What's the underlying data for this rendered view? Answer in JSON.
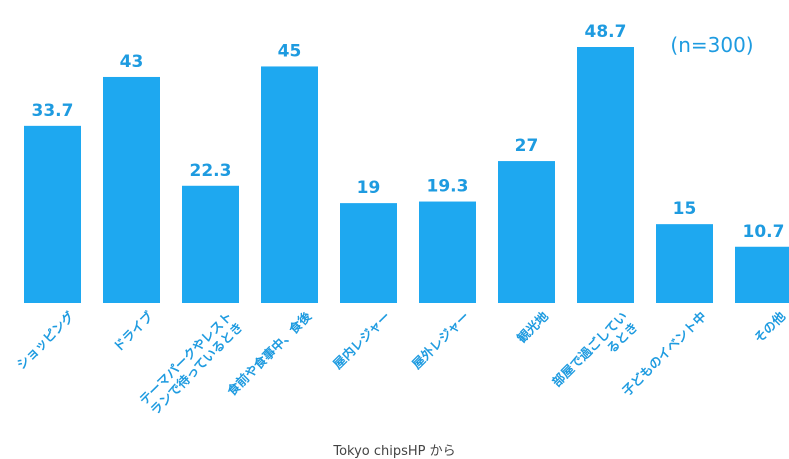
{
  "chart_data": {
    "type": "bar",
    "categories": [
      "ショッピング",
      "ドライブ",
      "テーマパークやレストランで待っているとき",
      "食前や食事中、食後",
      "屋内レジャー",
      "屋外レジャー",
      "観光地",
      "部屋で過ごしているとき",
      "子どものイベント中",
      "その他"
    ],
    "values": [
      33.7,
      43,
      22.3,
      45,
      19,
      19.3,
      27,
      48.7,
      15,
      10.7
    ],
    "value_labels": [
      "33.7",
      "43",
      "22.3",
      "45",
      "19",
      "19.3",
      "27",
      "48.7",
      "15",
      "10.7"
    ],
    "category_label_lines": [
      [
        "ショッピング"
      ],
      [
        "ドライブ"
      ],
      [
        "テーマパークやレスト",
        "ランで待っているとき"
      ],
      [
        "食前や食事中、食後"
      ],
      [
        "屋内レジャー"
      ],
      [
        "屋外レジャー"
      ],
      [
        "観光地"
      ],
      [
        "部屋で過ごしてい",
        "るとき"
      ],
      [
        "子どものイベント中"
      ],
      [
        "その他"
      ]
    ],
    "annotation": "(n=300)",
    "bar_color": "#1ea8f0",
    "label_color": "#1e9be0",
    "title": "",
    "xlabel": "",
    "ylabel": "",
    "ylim": [
      0,
      52
    ],
    "grid": false,
    "legend": "none"
  },
  "footer": {
    "credit": "Tokyo chipsHP から"
  }
}
